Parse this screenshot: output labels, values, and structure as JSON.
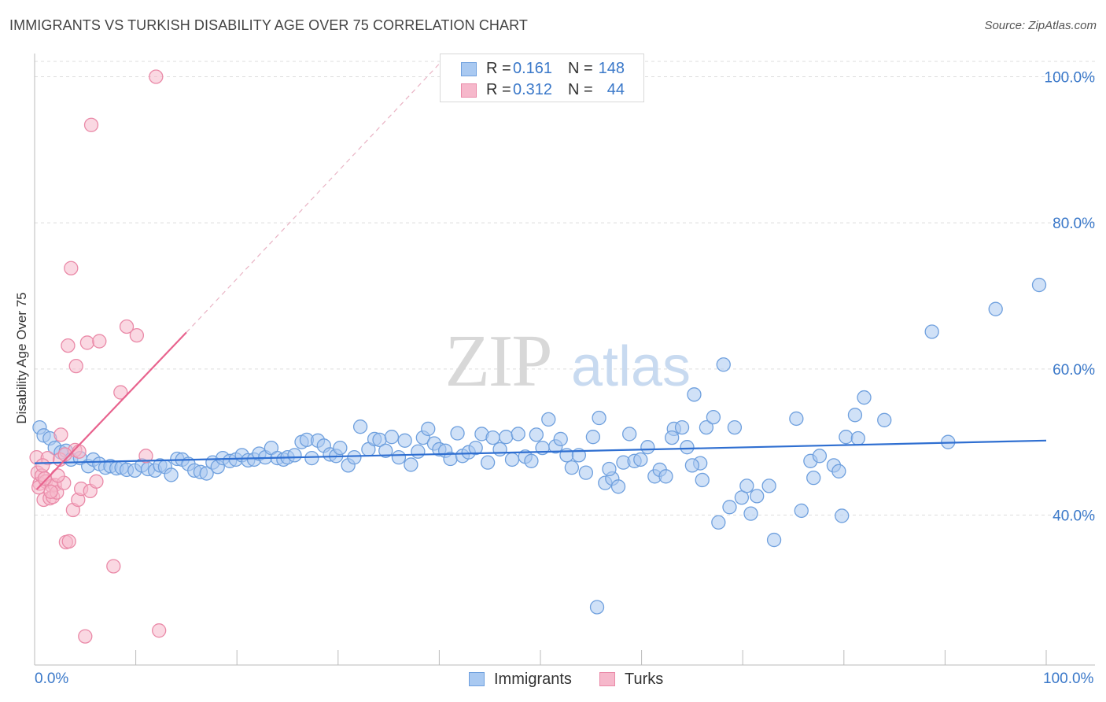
{
  "title": "IMMIGRANTS VS TURKISH DISABILITY AGE OVER 75 CORRELATION CHART",
  "source": "Source: ZipAtlas.com",
  "watermark": {
    "zip": "ZIP",
    "atlas": "atlas"
  },
  "colors": {
    "immigrants_fill": "#a9c9f1",
    "immigrants_stroke": "#6fa0de",
    "immigrants_line": "#2f6fd1",
    "turks_fill": "#f6b8cb",
    "turks_stroke": "#ea8aa8",
    "turks_line": "#e8638e",
    "axis_text": "#3a78c9",
    "grid": "#dddddd"
  },
  "legend": {
    "rows": [
      {
        "series": "Immigrants",
        "r_label": "R = ",
        "r_value": "0.161",
        "n_label": "N = ",
        "n_value": "148"
      },
      {
        "series": "Turks",
        "r_label": "R = ",
        "r_value": "0.312",
        "n_label": "N = ",
        "n_value": "44"
      }
    ]
  },
  "bottom_legend": {
    "immigrants": "Immigrants",
    "turks": "Turks"
  },
  "chart_data": {
    "type": "scatter",
    "title": "IMMIGRANTS VS TURKISH DISABILITY AGE OVER 75 CORRELATION CHART",
    "xlabel": "",
    "ylabel": "Disability Age Over 75",
    "xlim": [
      0,
      100
    ],
    "ylim": [
      20,
      104
    ],
    "x_tick_labels": {
      "left": "0.0%",
      "right": "100.0%"
    },
    "y_ticks": [
      {
        "value": 100,
        "label": "100.0%"
      },
      {
        "value": 80,
        "label": "80.0%"
      },
      {
        "value": 60,
        "label": "60.0%"
      },
      {
        "value": 40,
        "label": "40.0%"
      }
    ],
    "series": [
      {
        "name": "Immigrants",
        "trend": {
          "x0": 0,
          "y0": 47.1,
          "x1": 100,
          "y1": 50.2
        },
        "points": [
          [
            0.5,
            52.0
          ],
          [
            0.9,
            50.9
          ],
          [
            1.5,
            50.5
          ],
          [
            2.0,
            49.2
          ],
          [
            2.6,
            48.6
          ],
          [
            3.1,
            48.8
          ],
          [
            3.6,
            47.6
          ],
          [
            4.5,
            47.8
          ],
          [
            5.3,
            46.7
          ],
          [
            5.8,
            47.6
          ],
          [
            6.4,
            47.0
          ],
          [
            7.0,
            46.5
          ],
          [
            7.5,
            46.7
          ],
          [
            8.1,
            46.4
          ],
          [
            8.6,
            46.5
          ],
          [
            9.1,
            46.2
          ],
          [
            9.9,
            46.1
          ],
          [
            10.6,
            46.8
          ],
          [
            11.2,
            46.3
          ],
          [
            11.9,
            46.1
          ],
          [
            12.4,
            46.8
          ],
          [
            12.9,
            46.6
          ],
          [
            13.5,
            45.5
          ],
          [
            14.1,
            47.7
          ],
          [
            14.6,
            47.6
          ],
          [
            15.2,
            47.0
          ],
          [
            15.8,
            46.1
          ],
          [
            16.4,
            45.9
          ],
          [
            17.0,
            45.7
          ],
          [
            17.6,
            47.2
          ],
          [
            18.1,
            46.6
          ],
          [
            18.6,
            47.8
          ],
          [
            19.3,
            47.4
          ],
          [
            19.9,
            47.6
          ],
          [
            20.5,
            48.2
          ],
          [
            21.1,
            47.5
          ],
          [
            21.7,
            47.6
          ],
          [
            22.2,
            48.4
          ],
          [
            22.8,
            47.9
          ],
          [
            23.4,
            49.2
          ],
          [
            24.0,
            47.8
          ],
          [
            24.6,
            47.6
          ],
          [
            25.0,
            47.9
          ],
          [
            25.7,
            48.2
          ],
          [
            26.4,
            50.0
          ],
          [
            26.9,
            50.3
          ],
          [
            27.4,
            47.8
          ],
          [
            28.0,
            50.2
          ],
          [
            28.6,
            49.5
          ],
          [
            29.2,
            48.3
          ],
          [
            29.8,
            48.1
          ],
          [
            30.2,
            49.2
          ],
          [
            31.0,
            46.8
          ],
          [
            31.6,
            47.9
          ],
          [
            32.2,
            52.1
          ],
          [
            33.0,
            49.0
          ],
          [
            33.6,
            50.4
          ],
          [
            34.1,
            50.3
          ],
          [
            34.7,
            48.8
          ],
          [
            35.3,
            50.7
          ],
          [
            36.0,
            47.9
          ],
          [
            36.6,
            50.2
          ],
          [
            37.2,
            46.9
          ],
          [
            37.9,
            48.7
          ],
          [
            38.4,
            50.6
          ],
          [
            38.9,
            51.8
          ],
          [
            39.5,
            49.8
          ],
          [
            40.0,
            49.0
          ],
          [
            40.6,
            48.8
          ],
          [
            41.1,
            47.7
          ],
          [
            41.8,
            51.2
          ],
          [
            42.3,
            48.1
          ],
          [
            42.9,
            48.6
          ],
          [
            43.6,
            49.2
          ],
          [
            44.2,
            51.1
          ],
          [
            44.8,
            47.2
          ],
          [
            45.3,
            50.6
          ],
          [
            46.0,
            49.0
          ],
          [
            46.6,
            50.7
          ],
          [
            47.2,
            47.6
          ],
          [
            47.8,
            51.1
          ],
          [
            48.5,
            48.0
          ],
          [
            49.1,
            47.4
          ],
          [
            49.6,
            51.0
          ],
          [
            50.2,
            49.2
          ],
          [
            50.8,
            53.1
          ],
          [
            51.5,
            49.4
          ],
          [
            52.0,
            50.4
          ],
          [
            52.6,
            48.2
          ],
          [
            53.1,
            46.5
          ],
          [
            53.8,
            48.2
          ],
          [
            54.5,
            45.8
          ],
          [
            55.2,
            50.7
          ],
          [
            55.8,
            53.3
          ],
          [
            56.4,
            44.4
          ],
          [
            57.1,
            45.0
          ],
          [
            57.7,
            43.9
          ],
          [
            58.2,
            47.2
          ],
          [
            58.8,
            51.1
          ],
          [
            59.3,
            47.4
          ],
          [
            59.9,
            47.6
          ],
          [
            60.6,
            49.3
          ],
          [
            61.3,
            45.3
          ],
          [
            61.8,
            46.2
          ],
          [
            62.4,
            45.3
          ],
          [
            63.2,
            51.8
          ],
          [
            64.0,
            52.0
          ],
          [
            64.5,
            49.3
          ],
          [
            65.2,
            56.5
          ],
          [
            65.8,
            47.1
          ],
          [
            66.4,
            52.0
          ],
          [
            67.1,
            53.4
          ],
          [
            67.6,
            39.0
          ],
          [
            68.1,
            60.6
          ],
          [
            68.7,
            41.1
          ],
          [
            69.2,
            52.0
          ],
          [
            69.9,
            42.4
          ],
          [
            70.4,
            44.0
          ],
          [
            70.8,
            40.2
          ],
          [
            71.4,
            42.6
          ],
          [
            72.6,
            44.0
          ],
          [
            73.1,
            36.6
          ],
          [
            75.3,
            53.2
          ],
          [
            75.8,
            40.6
          ],
          [
            76.7,
            47.4
          ],
          [
            77.0,
            45.1
          ],
          [
            77.6,
            48.1
          ],
          [
            79.0,
            46.8
          ],
          [
            79.5,
            46.0
          ],
          [
            79.8,
            39.9
          ],
          [
            80.2,
            50.7
          ],
          [
            81.1,
            53.7
          ],
          [
            81.4,
            50.5
          ],
          [
            82.0,
            56.1
          ],
          [
            84.0,
            53.0
          ],
          [
            88.7,
            65.1
          ],
          [
            90.3,
            50.0
          ],
          [
            95.0,
            68.2
          ],
          [
            99.3,
            71.5
          ],
          [
            55.6,
            27.4
          ],
          [
            56.8,
            46.3
          ],
          [
            65.0,
            46.8
          ],
          [
            66.0,
            44.8
          ],
          [
            63.0,
            50.6
          ]
        ]
      },
      {
        "name": "Turks",
        "trend": {
          "x0": 0.2,
          "y0": 43.5,
          "x1": 15.0,
          "y1": 65.0
        },
        "trend_dashed": {
          "x0": 15.0,
          "y0": 65.0,
          "x1": 40.5,
          "y1": 102.5
        },
        "points": [
          [
            0.2,
            47.9
          ],
          [
            0.3,
            45.8
          ],
          [
            0.5,
            44.3
          ],
          [
            0.7,
            45.4
          ],
          [
            0.9,
            42.1
          ],
          [
            1.1,
            44.6
          ],
          [
            1.3,
            47.8
          ],
          [
            1.5,
            42.3
          ],
          [
            1.7,
            44.0
          ],
          [
            1.8,
            42.5
          ],
          [
            2.0,
            44.1
          ],
          [
            2.2,
            43.1
          ],
          [
            2.5,
            47.6
          ],
          [
            2.6,
            51.0
          ],
          [
            2.9,
            44.4
          ],
          [
            3.1,
            36.3
          ],
          [
            3.3,
            63.2
          ],
          [
            3.4,
            36.4
          ],
          [
            3.6,
            73.8
          ],
          [
            3.8,
            40.7
          ],
          [
            4.0,
            48.9
          ],
          [
            4.1,
            60.4
          ],
          [
            4.3,
            42.1
          ],
          [
            4.4,
            48.7
          ],
          [
            4.6,
            43.6
          ],
          [
            5.0,
            23.4
          ],
          [
            5.2,
            63.6
          ],
          [
            5.5,
            43.3
          ],
          [
            5.6,
            93.4
          ],
          [
            6.1,
            44.6
          ],
          [
            6.4,
            63.8
          ],
          [
            7.8,
            33.0
          ],
          [
            8.5,
            56.8
          ],
          [
            9.1,
            65.8
          ],
          [
            10.1,
            64.6
          ],
          [
            11.0,
            48.1
          ],
          [
            12.0,
            100.0
          ],
          [
            12.3,
            24.2
          ],
          [
            0.4,
            43.8
          ],
          [
            1.0,
            45.0
          ],
          [
            1.6,
            43.2
          ],
          [
            2.3,
            45.4
          ],
          [
            3.0,
            48.3
          ],
          [
            0.8,
            46.8
          ]
        ]
      }
    ]
  }
}
